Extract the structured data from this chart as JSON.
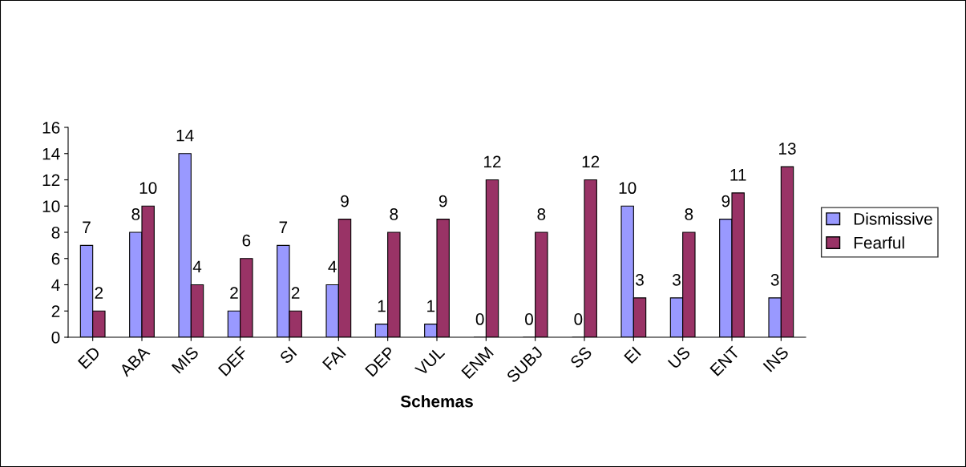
{
  "chart_data": {
    "type": "bar",
    "xlabel": "Schemas",
    "categories": [
      "ED",
      "ABA",
      "MIS",
      "DEF",
      "SI",
      "FAI",
      "DEP",
      "VUL",
      "ENM",
      "SUBJ",
      "SS",
      "EI",
      "US",
      "ENT",
      "INS"
    ],
    "series": [
      {
        "name": "Dismissive",
        "color": "#9999ff",
        "values": [
          7,
          8,
          14,
          2,
          7,
          4,
          1,
          1,
          0,
          0,
          0,
          10,
          3,
          9,
          3
        ]
      },
      {
        "name": "Fearful",
        "color": "#993366",
        "values": [
          2,
          10,
          4,
          6,
          2,
          9,
          8,
          9,
          12,
          8,
          12,
          3,
          8,
          11,
          13
        ]
      }
    ],
    "ylim": [
      0,
      16
    ],
    "yticks": [
      0,
      2,
      4,
      6,
      8,
      10,
      12,
      14,
      16
    ],
    "data_labels": true,
    "grid": false,
    "legend": "right"
  }
}
